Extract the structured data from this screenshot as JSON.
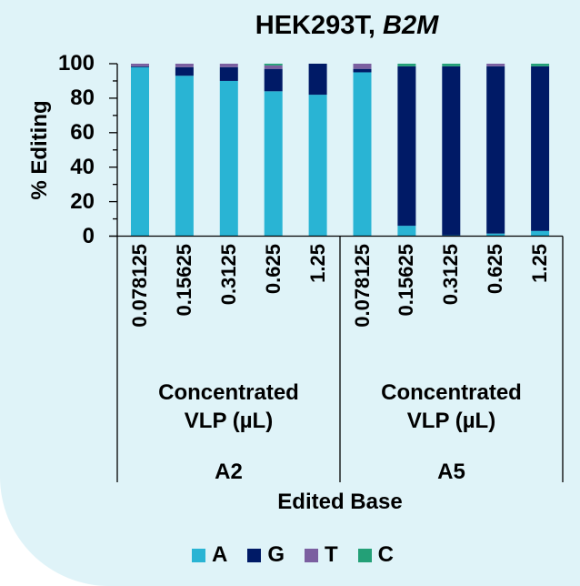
{
  "chart_data": {
    "type": "bar",
    "stacked": true,
    "title": "HEK293T, B2M",
    "title_parts": {
      "plain": "HEK293T, ",
      "italic": "B2M"
    },
    "ylabel": "% Editing",
    "xlabel": "Edited Base",
    "ylim": [
      0,
      100
    ],
    "yticks": [
      0,
      20,
      40,
      60,
      80,
      100
    ],
    "grid": false,
    "legend_position": "bottom",
    "groups": [
      {
        "name": "A2",
        "sublabel": "Concentrated VLP (µL)",
        "categories": [
          "0.078125",
          "0.15625",
          "0.3125",
          "0.625",
          "1.25"
        ]
      },
      {
        "name": "A5",
        "sublabel": "Concentrated VLP (µL)",
        "categories": [
          "0.078125",
          "0.15625",
          "0.3125",
          "0.625",
          "1.25"
        ]
      }
    ],
    "categories": [
      "A2 0.078125",
      "A2 0.15625",
      "A2 0.3125",
      "A2 0.625",
      "A2 1.25",
      "A5 0.078125",
      "A5 0.15625",
      "A5 0.3125",
      "A5 0.625",
      "A5 1.25"
    ],
    "series": [
      {
        "name": "A",
        "color": "#29b4d4",
        "values": [
          98,
          93,
          90,
          84,
          82,
          95,
          6,
          0.5,
          1.5,
          3
        ]
      },
      {
        "name": "G",
        "color": "#001a66",
        "values": [
          0.5,
          5,
          8,
          13,
          18,
          2,
          92.5,
          98,
          97,
          95.5
        ]
      },
      {
        "name": "T",
        "color": "#7b5fa0",
        "values": [
          1.5,
          2,
          2,
          2,
          0,
          3,
          0,
          0,
          1.5,
          0
        ]
      },
      {
        "name": "C",
        "color": "#23a077",
        "values": [
          0,
          0,
          0,
          1,
          0,
          0,
          1.5,
          1.5,
          0,
          1.5
        ]
      }
    ]
  },
  "labels": {
    "title_plain": "HEK293T, ",
    "title_italic": "B2M",
    "ylabel": "% Editing",
    "xlabel": "Edited Base",
    "group_sublabel_line1": "Concentrated",
    "group_sublabel_line2": "VLP (µL)",
    "group_a": "A2",
    "group_b": "A5",
    "yticks": [
      "100",
      "80",
      "60",
      "40",
      "20",
      "0"
    ],
    "xticks": [
      "0.078125",
      "0.15625",
      "0.3125",
      "0.625",
      "1.25",
      "0.078125",
      "0.15625",
      "0.3125",
      "0.625",
      "1.25"
    ],
    "legend": [
      "A",
      "G",
      "T",
      "C"
    ]
  }
}
